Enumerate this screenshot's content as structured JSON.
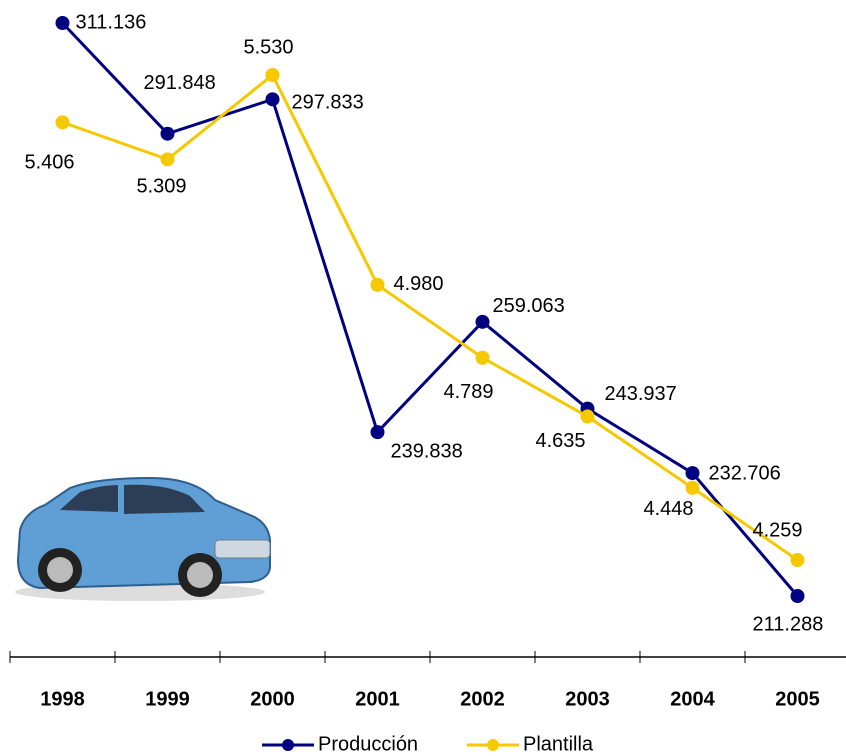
{
  "chart_data": {
    "type": "line",
    "categories": [
      "1998",
      "1999",
      "2000",
      "2001",
      "2002",
      "2003",
      "2004",
      "2005"
    ],
    "series": [
      {
        "name": "Producción",
        "color": "#000080",
        "values": [
          311136,
          291848,
          297833,
          239838,
          259063,
          243937,
          232706,
          211288
        ],
        "value_labels": [
          "311.136",
          "291.848",
          "297.833",
          "239.838",
          "259.063",
          "243.937",
          "232.706",
          "211.288"
        ]
      },
      {
        "name": "Plantilla",
        "color": "#f5c800",
        "values": [
          5406,
          5309,
          5530,
          4980,
          4789,
          4635,
          4448,
          4259
        ],
        "value_labels": [
          "5.406",
          "5.309",
          "5.530",
          "4.980",
          "4.789",
          "4.635",
          "4.448",
          "4.259"
        ]
      }
    ],
    "legend": "bottom"
  }
}
